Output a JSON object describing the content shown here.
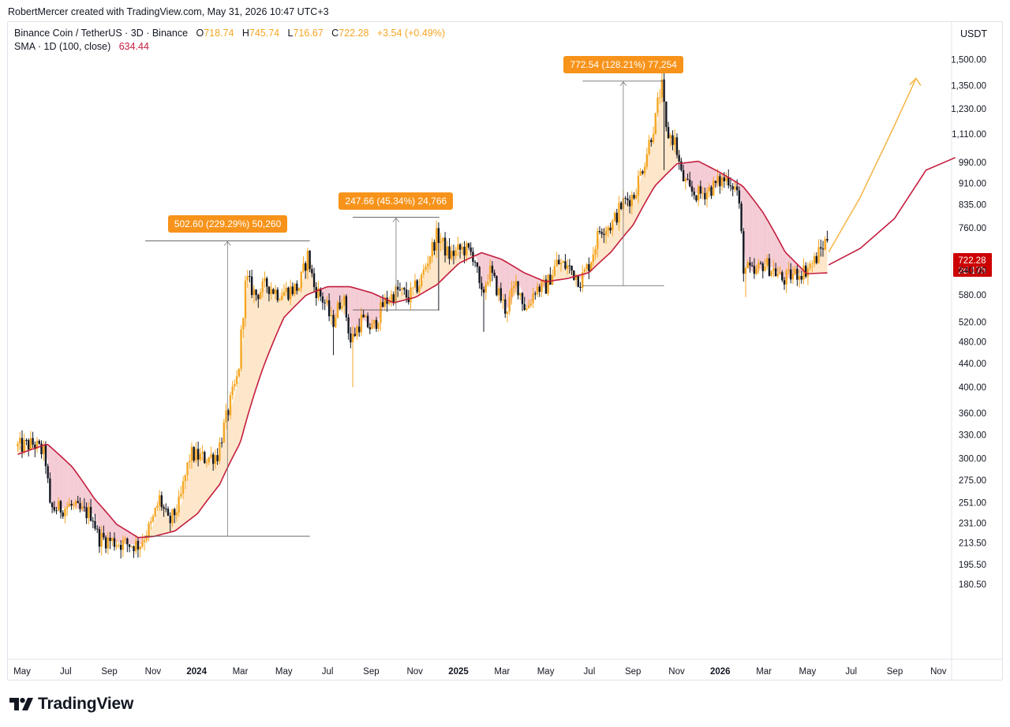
{
  "header": {
    "created_by": "RobertMercer created with TradingView.com, May 31, 2026 10:47 UTC+3"
  },
  "legend": {
    "symbol": "Binance Coin / TetherUS · 3D · Binance",
    "o_label": "O",
    "o_value": "718.74",
    "h_label": "H",
    "h_value": "745.74",
    "l_label": "L",
    "l_value": "716.67",
    "c_label": "C",
    "c_value": "722.28",
    "change": "+3.54 (+0.49%)",
    "sma_label": "SMA · 1D (100, close)",
    "sma_value": "634.44"
  },
  "price_axis": {
    "currency": "USDT",
    "ticks": [
      "1,500.00",
      "1,350.00",
      "1,230.00",
      "1,110.00",
      "990.00",
      "910.00",
      "835.00",
      "760.00",
      "640.00",
      "580.00",
      "520.00",
      "480.00",
      "440.00",
      "400.00",
      "360.00",
      "330.00",
      "300.00",
      "275.00",
      "251.00",
      "231.00",
      "213.50",
      "195.50",
      "180.50"
    ],
    "current_price": "722.28",
    "countdown": "2d 17h"
  },
  "time_axis": {
    "labels": [
      {
        "text": "May",
        "bold": false
      },
      {
        "text": "Jul",
        "bold": false
      },
      {
        "text": "Sep",
        "bold": false
      },
      {
        "text": "Nov",
        "bold": false
      },
      {
        "text": "2024",
        "bold": true
      },
      {
        "text": "Mar",
        "bold": false
      },
      {
        "text": "May",
        "bold": false
      },
      {
        "text": "Jul",
        "bold": false
      },
      {
        "text": "Sep",
        "bold": false
      },
      {
        "text": "Nov",
        "bold": false
      },
      {
        "text": "2025",
        "bold": true
      },
      {
        "text": "Mar",
        "bold": false
      },
      {
        "text": "May",
        "bold": false
      },
      {
        "text": "Jul",
        "bold": false
      },
      {
        "text": "Sep",
        "bold": false
      },
      {
        "text": "Nov",
        "bold": false
      },
      {
        "text": "2026",
        "bold": true
      },
      {
        "text": "Mar",
        "bold": false
      },
      {
        "text": "May",
        "bold": false
      },
      {
        "text": "Jul",
        "bold": false
      },
      {
        "text": "Sep",
        "bold": false
      },
      {
        "text": "Nov",
        "bold": false
      }
    ]
  },
  "measurements": [
    {
      "label": "502.60 (229.29%) 50,260",
      "from_date": "2023-10-20",
      "to_date": "2024-06-06",
      "low": 219.2,
      "high": 721.8
    },
    {
      "label": "247.66 (45.34%) 24,766",
      "from_date": "2024-08-05",
      "to_date": "2024-12-04",
      "low": 546.2,
      "high": 793.8
    },
    {
      "label": "772.54 (128.21%) 77,254",
      "from_date": "2025-06-22",
      "to_date": "2025-10-14",
      "low": 602.5,
      "high": 1375.0
    }
  ],
  "logo": {
    "text": "TradingView"
  },
  "colors": {
    "candle_up": "#f5a623",
    "candle_down": "#131722",
    "sma": "#c41d3f",
    "fill_above": "#fde2bf",
    "fill_below": "#f2c2cc",
    "callout_bg": "#f7931a",
    "price_badge": "#cc0000",
    "projection": "#f5b94e"
  },
  "chart_data": {
    "type": "candlestick",
    "symbol": "Binance Coin / TetherUS",
    "interval": "3D",
    "exchange": "Binance",
    "y_scale": "log",
    "ylim": [
      170,
      1600
    ],
    "x_range": [
      "2023-04-25",
      "2026-11-25"
    ],
    "grid": false,
    "price_path": [
      [
        "2023-05-01",
        315
      ],
      [
        "2023-05-20",
        318
      ],
      [
        "2023-06-05",
        305
      ],
      [
        "2023-06-12",
        245
      ],
      [
        "2023-06-25",
        245
      ],
      [
        "2023-07-10",
        248
      ],
      [
        "2023-07-25",
        242
      ],
      [
        "2023-08-10",
        240
      ],
      [
        "2023-08-18",
        218
      ],
      [
        "2023-09-05",
        215
      ],
      [
        "2023-09-20",
        213
      ],
      [
        "2023-10-05",
        212
      ],
      [
        "2023-10-15",
        212
      ],
      [
        "2023-11-01",
        230
      ],
      [
        "2023-11-12",
        255
      ],
      [
        "2023-11-25",
        230
      ],
      [
        "2023-12-10",
        250
      ],
      [
        "2023-12-25",
        305
      ],
      [
        "2024-01-15",
        300
      ],
      [
        "2024-02-01",
        305
      ],
      [
        "2024-02-15",
        360
      ],
      [
        "2024-03-01",
        420
      ],
      [
        "2024-03-12",
        620
      ],
      [
        "2024-03-25",
        580
      ],
      [
        "2024-04-10",
        605
      ],
      [
        "2024-04-25",
        585
      ],
      [
        "2024-05-10",
        590
      ],
      [
        "2024-05-25",
        600
      ],
      [
        "2024-06-06",
        680
      ],
      [
        "2024-06-15",
        600
      ],
      [
        "2024-07-01",
        560
      ],
      [
        "2024-07-10",
        515
      ],
      [
        "2024-07-25",
        580
      ],
      [
        "2024-08-05",
        480
      ],
      [
        "2024-08-20",
        525
      ],
      [
        "2024-09-05",
        505
      ],
      [
        "2024-09-20",
        560
      ],
      [
        "2024-10-10",
        590
      ],
      [
        "2024-10-25",
        575
      ],
      [
        "2024-11-10",
        610
      ],
      [
        "2024-12-04",
        740
      ],
      [
        "2024-12-20",
        680
      ],
      [
        "2025-01-10",
        700
      ],
      [
        "2025-01-25",
        680
      ],
      [
        "2025-02-03",
        570
      ],
      [
        "2025-02-15",
        640
      ],
      [
        "2025-03-01",
        580
      ],
      [
        "2025-03-10",
        545
      ],
      [
        "2025-03-25",
        610
      ],
      [
        "2025-04-07",
        545
      ],
      [
        "2025-04-20",
        595
      ],
      [
        "2025-05-05",
        600
      ],
      [
        "2025-05-20",
        660
      ],
      [
        "2025-06-05",
        650
      ],
      [
        "2025-06-22",
        615
      ],
      [
        "2025-07-05",
        660
      ],
      [
        "2025-07-20",
        760
      ],
      [
        "2025-08-05",
        770
      ],
      [
        "2025-08-20",
        840
      ],
      [
        "2025-09-05",
        870
      ],
      [
        "2025-09-20",
        1000
      ],
      [
        "2025-10-05",
        1180
      ],
      [
        "2025-10-10",
        1300
      ],
      [
        "2025-10-14",
        1340
      ],
      [
        "2025-10-20",
        1120
      ],
      [
        "2025-11-01",
        1080
      ],
      [
        "2025-11-10",
        940
      ],
      [
        "2025-11-22",
        880
      ],
      [
        "2025-12-05",
        870
      ],
      [
        "2025-12-20",
        890
      ],
      [
        "2026-01-05",
        920
      ],
      [
        "2026-01-15",
        930
      ],
      [
        "2026-01-28",
        880
      ],
      [
        "2026-02-05",
        650
      ],
      [
        "2026-02-20",
        630
      ],
      [
        "2026-03-05",
        660
      ],
      [
        "2026-03-20",
        640
      ],
      [
        "2026-04-01",
        615
      ],
      [
        "2026-04-15",
        630
      ],
      [
        "2026-05-01",
        640
      ],
      [
        "2026-05-15",
        665
      ],
      [
        "2026-05-25",
        700
      ],
      [
        "2026-05-31",
        722.28
      ]
    ],
    "sma_100_1d": [
      [
        "2023-04-25",
        305
      ],
      [
        "2023-06-05",
        318
      ],
      [
        "2023-07-10",
        290
      ],
      [
        "2023-08-10",
        255
      ],
      [
        "2023-09-10",
        230
      ],
      [
        "2023-10-10",
        218
      ],
      [
        "2023-11-01",
        219
      ],
      [
        "2023-12-01",
        224
      ],
      [
        "2024-01-01",
        240
      ],
      [
        "2024-02-01",
        270
      ],
      [
        "2024-03-01",
        320
      ],
      [
        "2024-04-01",
        430
      ],
      [
        "2024-05-01",
        530
      ],
      [
        "2024-06-01",
        580
      ],
      [
        "2024-07-01",
        600
      ],
      [
        "2024-08-01",
        600
      ],
      [
        "2024-09-01",
        585
      ],
      [
        "2024-10-01",
        562
      ],
      [
        "2024-11-01",
        575
      ],
      [
        "2024-12-01",
        605
      ],
      [
        "2025-01-01",
        660
      ],
      [
        "2025-02-01",
        688
      ],
      [
        "2025-03-01",
        670
      ],
      [
        "2025-04-01",
        635
      ],
      [
        "2025-05-01",
        612
      ],
      [
        "2025-06-01",
        620
      ],
      [
        "2025-07-01",
        635
      ],
      [
        "2025-08-01",
        690
      ],
      [
        "2025-09-01",
        770
      ],
      [
        "2025-10-01",
        900
      ],
      [
        "2025-11-01",
        985
      ],
      [
        "2025-12-01",
        995
      ],
      [
        "2026-01-01",
        950
      ],
      [
        "2026-02-01",
        900
      ],
      [
        "2026-03-01",
        810
      ],
      [
        "2026-04-01",
        690
      ],
      [
        "2026-05-01",
        632
      ],
      [
        "2026-05-31",
        634.44
      ]
    ],
    "sma_projection": [
      [
        "2026-06-01",
        655
      ],
      [
        "2026-07-15",
        700
      ],
      [
        "2026-09-01",
        790
      ],
      [
        "2026-10-15",
        960
      ],
      [
        "2026-11-25",
        1010
      ]
    ],
    "price_projection": [
      [
        "2026-06-01",
        690
      ],
      [
        "2026-07-15",
        860
      ],
      [
        "2026-09-01",
        1150
      ],
      [
        "2026-10-01",
        1390
      ]
    ]
  }
}
